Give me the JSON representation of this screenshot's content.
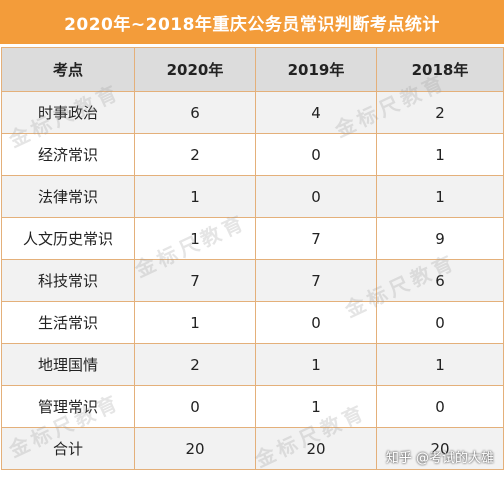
{
  "title": "2020年~2018年重庆公务员常识判断考点统计",
  "header": [
    "考点",
    "2020年",
    "2019年",
    "2018年"
  ],
  "rows": [
    {
      "label": "时事政治",
      "values": [
        "6",
        "4",
        "2"
      ]
    },
    {
      "label": "经济常识",
      "values": [
        "2",
        "0",
        "1"
      ]
    },
    {
      "label": "法律常识",
      "values": [
        "1",
        "0",
        "1"
      ]
    },
    {
      "label": "人文历史常识",
      "values": [
        "1",
        "7",
        "9"
      ]
    },
    {
      "label": "科技常识",
      "values": [
        "7",
        "7",
        "6"
      ]
    },
    {
      "label": "生活常识",
      "values": [
        "1",
        "0",
        "0"
      ]
    },
    {
      "label": "地理国情",
      "values": [
        "2",
        "1",
        "1"
      ]
    },
    {
      "label": "管理常识",
      "values": [
        "0",
        "1",
        "0"
      ]
    },
    {
      "label": "合计",
      "values": [
        "20",
        "20",
        "20"
      ]
    }
  ],
  "watermark": "金标尺教育",
  "source_tag": "知乎 @考试的大雄",
  "colors": {
    "title_bg": "#f39c3a",
    "border": "#e4b07a",
    "header_bg": "#dcdcdc"
  }
}
